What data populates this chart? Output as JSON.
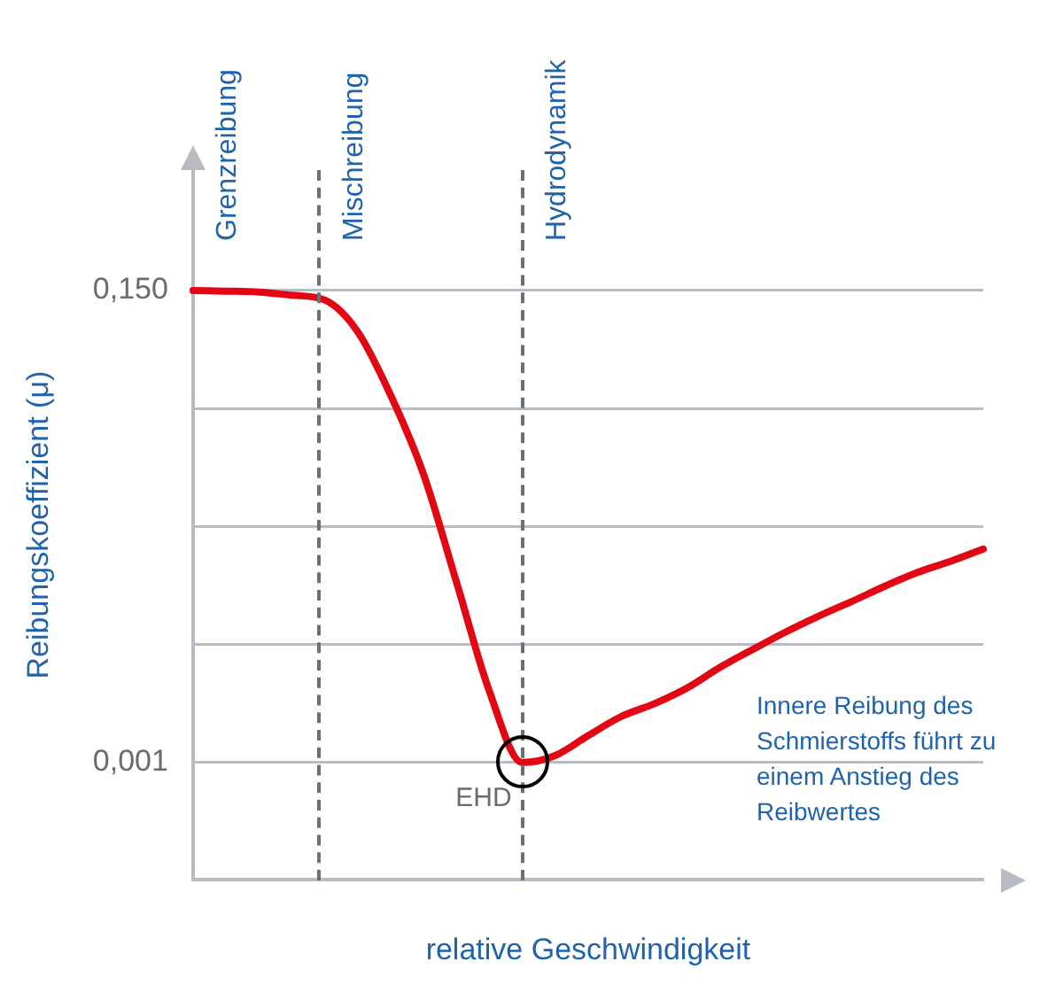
{
  "chart_data": {
    "type": "line",
    "xlabel": "relative Geschwindigkeit",
    "ylabel": "Reibungskoeffizient (μ)",
    "categories": [
      null,
      null,
      null,
      null,
      null,
      null,
      null,
      null,
      null,
      null,
      null,
      null,
      null,
      null,
      null,
      null,
      null,
      null,
      null,
      null,
      null,
      null,
      null,
      null,
      null
    ],
    "series": [
      {
        "color": "#e30613",
        "values": [
          0.15,
          0.1498,
          0.1495,
          0.1485,
          0.147,
          0.137,
          0.117,
          0.092,
          0.058,
          0.0235,
          0.001,
          0.0032,
          0.0095,
          0.0155,
          0.0195,
          0.0245,
          0.031,
          0.0367,
          0.0422,
          0.0472,
          0.0518,
          0.0566,
          0.061,
          0.0645,
          0.0684
        ]
      }
    ],
    "ylim": [
      -0.036,
      0.188
    ],
    "yticks": [
      {
        "value": 0.001,
        "label": "0,001"
      },
      {
        "value": 0.03825,
        "label": null
      },
      {
        "value": 0.0755,
        "label": null
      },
      {
        "value": 0.11275,
        "label": null
      },
      {
        "value": 0.15,
        "label": "0,150"
      }
    ],
    "tick_labels": "y",
    "grid": "y",
    "legend": false,
    "marker": "none",
    "line_style": "solid",
    "annotations": [
      "Grenzreibung",
      "Mischreibung",
      "Hydrodynamik",
      "EHD",
      "Innere Reibung des Schmierstoffs führt zu einem Anstieg des Reibwertes"
    ]
  }
}
